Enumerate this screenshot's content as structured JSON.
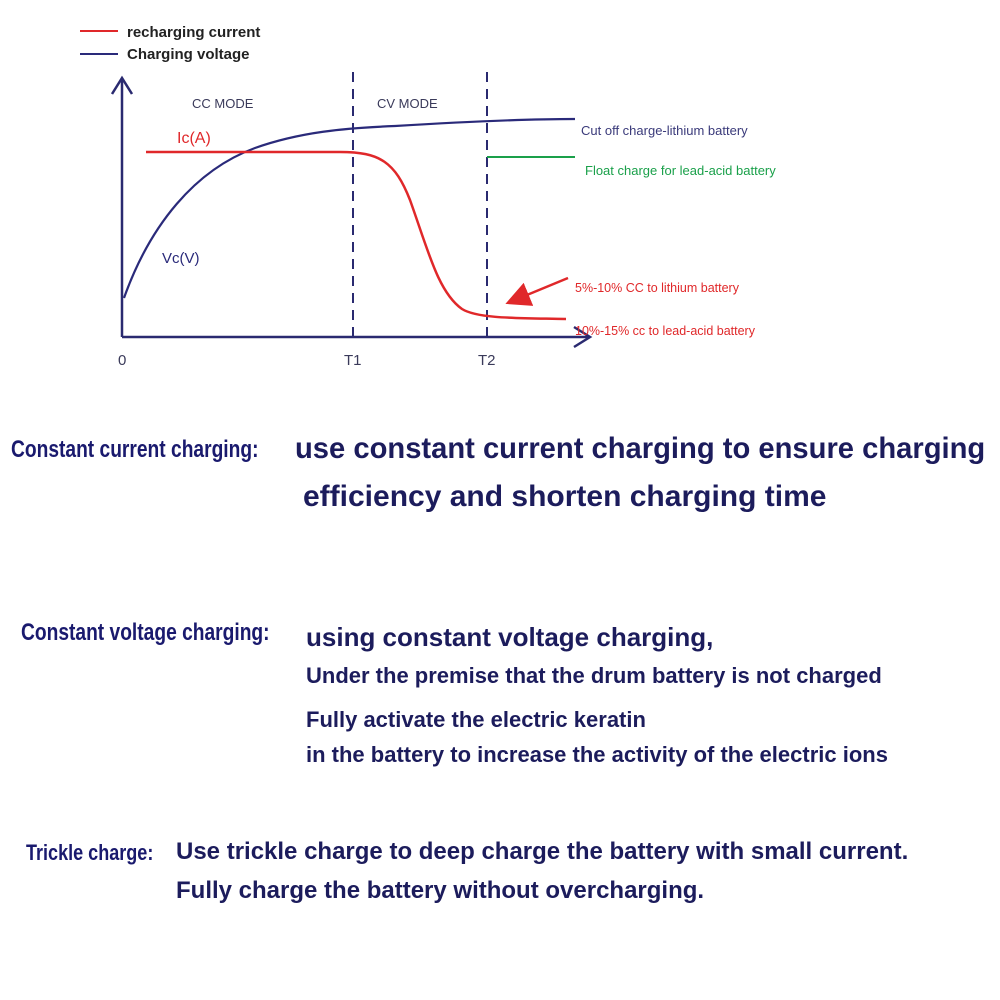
{
  "legend": [
    {
      "label": "recharging current",
      "color": "#e0282a"
    },
    {
      "label": "Charging voltage",
      "color": "#2a2a7a"
    }
  ],
  "diagram": {
    "cc_mode": "CC MODE",
    "cv_mode": "CV MODE",
    "current_label": "Ic(A)",
    "voltage_label": "Vc(V)",
    "origin_label": "0",
    "t1_label": "T1",
    "t2_label": "T2",
    "cutoff_label": "Cut off charge-lithium battery",
    "float_label": "Float charge for  lead-acid battery",
    "lithium_cc_label": "5%-10% CC to lithium battery",
    "lead_cc_label": "10%-15% cc  to lead-acid battery",
    "colors": {
      "current": "#e0282a",
      "voltage": "#2a2a7a",
      "axis": "#2a2a70",
      "float": "#1aa04a",
      "mode_text": "#3a3a5a"
    }
  },
  "sections": [
    {
      "label": "Constant current charging:",
      "lines": [
        "use constant current charging to ensure charging",
        "efficiency and shorten charging time"
      ]
    },
    {
      "label": "Constant voltage charging:",
      "lines": [
        "using constant voltage charging,",
        "Under the premise that the drum battery is not charged",
        "Fully activate the electric keratin",
        "in the battery to increase the activity of the electric ions"
      ]
    },
    {
      "label": "Trickle charge:",
      "lines": [
        "Use trickle charge to deep charge the battery with small current.",
        "Fully charge the battery without overcharging."
      ]
    }
  ]
}
